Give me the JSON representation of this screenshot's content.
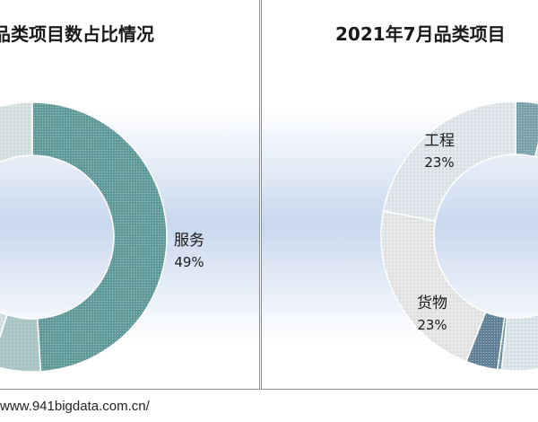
{
  "footer": {
    "url": "www.941bigdata.com.cn/"
  },
  "chart_data": [
    {
      "type": "pie",
      "donut": true,
      "title": "品类项目数占比情况",
      "slices": [
        {
          "label": "服务",
          "value": 49,
          "pct_text": "49%",
          "color": "#5f9898",
          "pattern": "dense"
        },
        {
          "label": "",
          "value": 6,
          "pct_text": "",
          "color": "#a9c4c4",
          "pattern": "medium"
        },
        {
          "label": "",
          "value": 45,
          "pct_text": "",
          "color": "#d8e4e4",
          "pattern": "light"
        }
      ]
    },
    {
      "type": "pie",
      "donut": true,
      "title": "2021年7月品类项目",
      "slices": [
        {
          "label": "",
          "value": 4,
          "pct_text": "",
          "color": "#7aa0a8",
          "pattern": "dense"
        },
        {
          "label": "",
          "value": 50,
          "pct_text": "",
          "color": "#dde6ea",
          "pattern": "light"
        },
        {
          "label": "",
          "value": 0.5,
          "pct_text": "",
          "color": "#6b8fa0",
          "pattern": "dense"
        },
        {
          "label": "",
          "value": 4,
          "pct_text": "",
          "color": "#5f7f95",
          "pattern": "dense"
        },
        {
          "label": "货物",
          "value": 23,
          "pct_text": "23%",
          "color": "#e8e8e8",
          "pattern": "light"
        },
        {
          "label": "工程",
          "value": 23,
          "pct_text": "23%",
          "color": "#e2e8ec",
          "pattern": "light"
        }
      ]
    }
  ]
}
